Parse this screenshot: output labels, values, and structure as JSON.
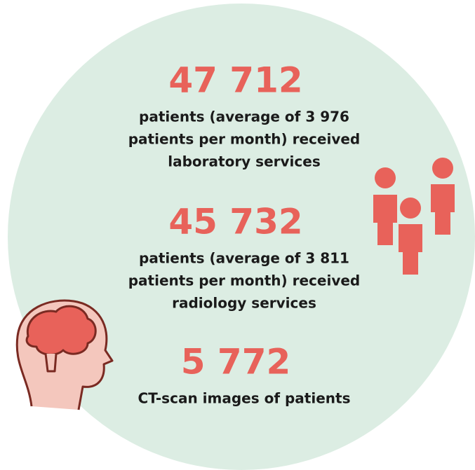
{
  "stats": [
    {
      "number": "47 712",
      "lines": [
        "patients (average of 3 976",
        "patients per month) received",
        "laboratory services"
      ]
    },
    {
      "number": "45 732",
      "lines": [
        "patients (average of 3 811",
        "patients per month) received",
        "radiology services"
      ]
    },
    {
      "number": "5 772",
      "lines": [
        "CT-scan images of patients"
      ]
    }
  ]
}
